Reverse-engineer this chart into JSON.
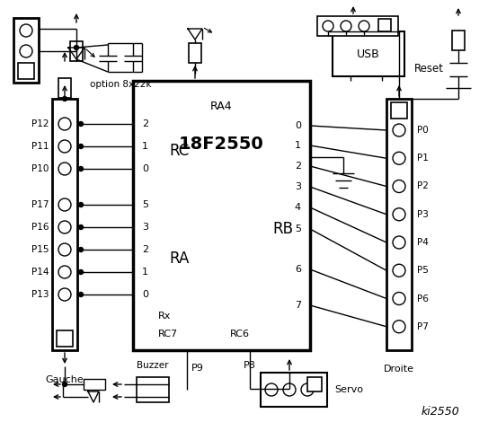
{
  "bg_color": "#ffffff",
  "line_color": "#000000",
  "chip_label": "18F2550",
  "chip_sublabel": "RA4",
  "rc_label": "RC",
  "ra_label": "RA",
  "rb_label": "RB",
  "left_connector_labels": [
    "P12",
    "P11",
    "P10",
    "P17",
    "P16",
    "P15",
    "P14",
    "P13"
  ],
  "right_connector_labels": [
    "P0",
    "P1",
    "P2",
    "P3",
    "P4",
    "P5",
    "P6",
    "P7"
  ],
  "gauche_label": "Gauche",
  "droite_label": "Droite",
  "usb_label": "USB",
  "reset_label": "Reset",
  "servo_label": "Servo",
  "buzzer_label": "Buzzer",
  "p8_label": "P8",
  "p9_label": "P9",
  "option_label": "option 8x22k",
  "ki_label": "ki2550",
  "rc_pins": [
    "2",
    "1",
    "0"
  ],
  "ra_pins": [
    "5",
    "3",
    "2",
    "1",
    "0"
  ],
  "rb_pins": [
    "0",
    "1",
    "2",
    "3",
    "4",
    "5",
    "6",
    "7"
  ]
}
